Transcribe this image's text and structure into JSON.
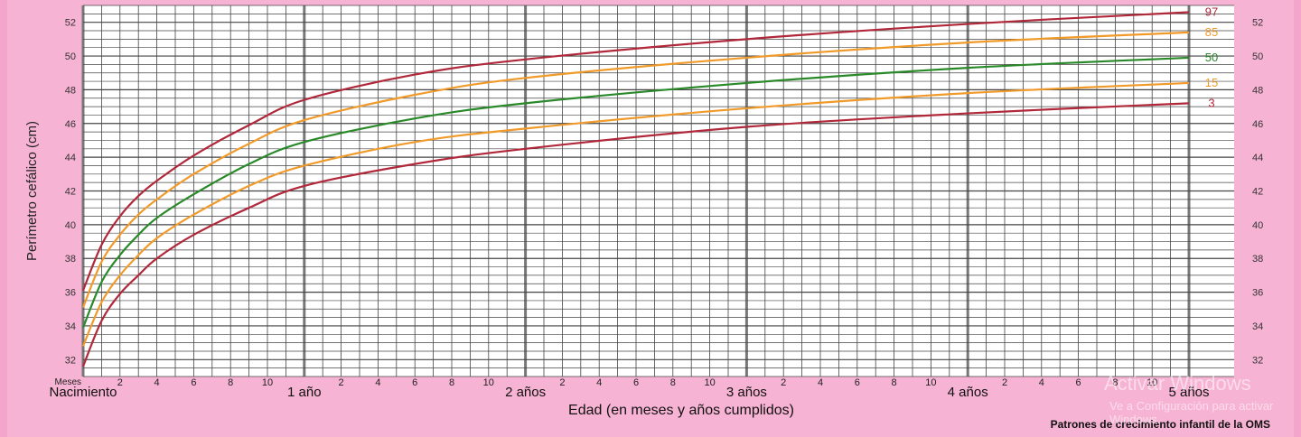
{
  "chart_data": {
    "type": "line",
    "ylabel": "Perímetro cefálico (cm)",
    "xlabel": "Edad (en meses y años cumplidos)",
    "x_unit_label": "Meses",
    "x_range_months": [
      0,
      60
    ],
    "ylim": [
      31,
      53
    ],
    "y_ticks": [
      32,
      34,
      36,
      38,
      40,
      42,
      44,
      46,
      48,
      50,
      52
    ],
    "month_ticks": [
      "2",
      "4",
      "6",
      "8",
      "10"
    ],
    "year_labels": [
      "Nacimiento",
      "1 año",
      "2 años",
      "3 años",
      "4 años",
      "5 años"
    ],
    "source": "Patrones de crecimiento infantil de la OMS",
    "grid": true,
    "series": [
      {
        "name": "97",
        "color": "#b0283a",
        "x": [
          0,
          1,
          2,
          3,
          4,
          6,
          9,
          12,
          18,
          24,
          36,
          48,
          60
        ],
        "values": [
          36.1,
          38.8,
          40.5,
          41.7,
          42.6,
          44.1,
          45.9,
          47.4,
          48.9,
          49.8,
          51.0,
          51.9,
          52.6
        ]
      },
      {
        "name": "85",
        "color": "#f09a2a",
        "x": [
          0,
          1,
          2,
          3,
          4,
          6,
          9,
          12,
          18,
          24,
          36,
          48,
          60
        ],
        "values": [
          35.1,
          37.8,
          39.4,
          40.6,
          41.5,
          43.0,
          44.8,
          46.2,
          47.7,
          48.7,
          49.9,
          50.8,
          51.4
        ]
      },
      {
        "name": "50",
        "color": "#2a8a2a",
        "x": [
          0,
          1,
          2,
          3,
          4,
          6,
          9,
          12,
          18,
          24,
          36,
          48,
          60
        ],
        "values": [
          33.9,
          36.6,
          38.2,
          39.4,
          40.4,
          41.8,
          43.6,
          44.9,
          46.3,
          47.2,
          48.4,
          49.3,
          49.9
        ]
      },
      {
        "name": "15",
        "color": "#f09a2a",
        "x": [
          0,
          1,
          2,
          3,
          4,
          6,
          9,
          12,
          18,
          24,
          36,
          48,
          60
        ],
        "values": [
          32.8,
          35.4,
          37.0,
          38.2,
          39.2,
          40.6,
          42.3,
          43.5,
          44.9,
          45.7,
          46.9,
          47.8,
          48.4
        ]
      },
      {
        "name": "3",
        "color": "#b0283a",
        "x": [
          0,
          1,
          2,
          3,
          4,
          6,
          9,
          12,
          18,
          24,
          36,
          48,
          60
        ],
        "values": [
          31.6,
          34.3,
          35.9,
          37.0,
          38.0,
          39.4,
          41.0,
          42.3,
          43.6,
          44.5,
          45.8,
          46.6,
          47.2
        ]
      }
    ]
  },
  "watermark": {
    "title": "Activar Windows",
    "subtitle": "Ve a Configuración para activar Windows."
  },
  "colors": {
    "background": "#f7b3d3",
    "plot_background": "#ffffff",
    "grid": "#444444"
  }
}
